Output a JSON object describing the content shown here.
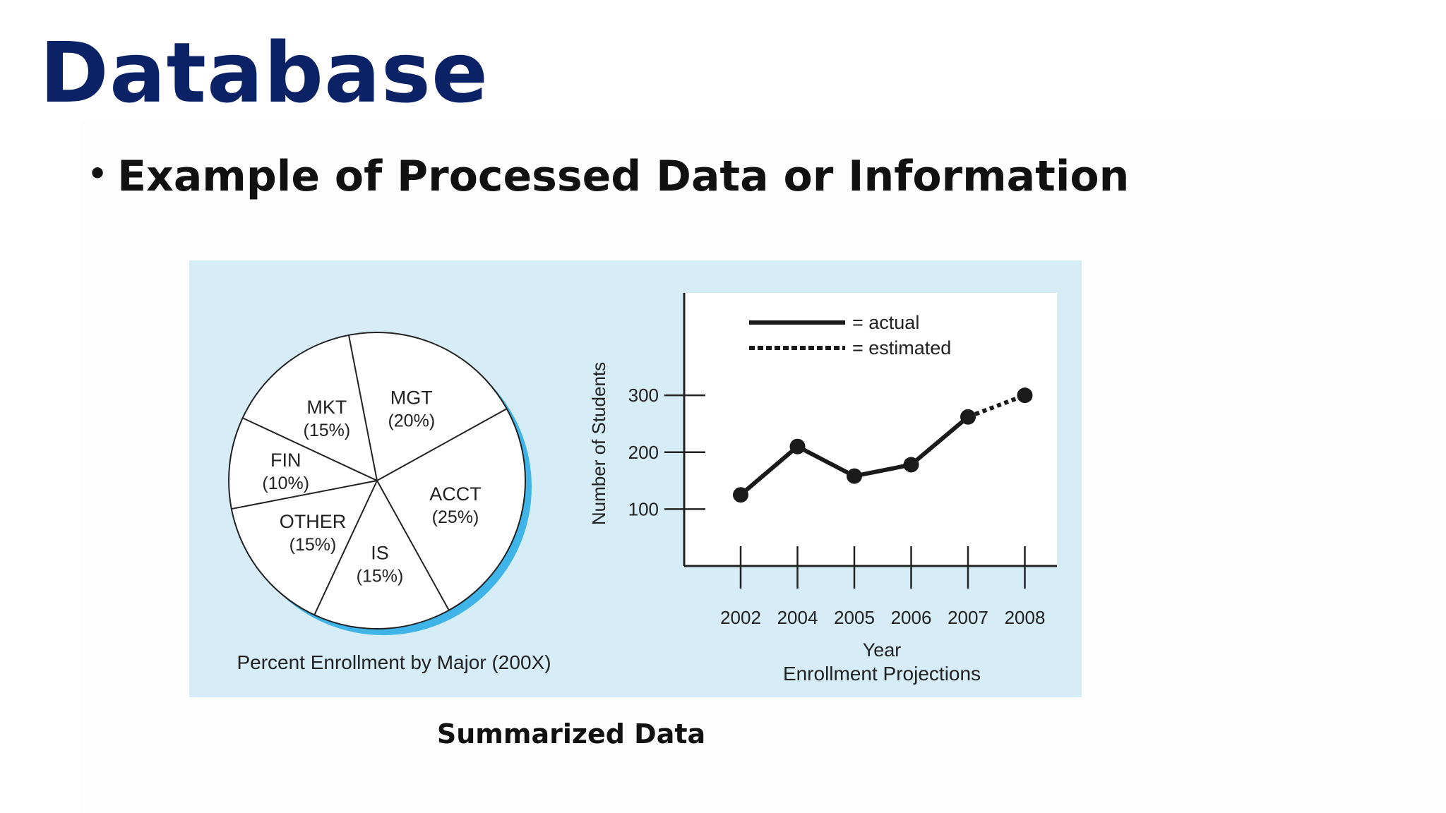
{
  "slide": {
    "title": "Database",
    "bullet": "Example of Processed Data or Information",
    "caption": "Summarized Data"
  },
  "colors": {
    "title": "#0b2366",
    "figure_background": "#d6edf8",
    "pie_shadow": "#3fb4e8"
  },
  "chart_data": [
    {
      "type": "pie",
      "title": "Percent Enrollment by Major (200X)",
      "slices": [
        {
          "label": "MKT",
          "percent_label": "(15%)",
          "value": 15
        },
        {
          "label": "MGT",
          "percent_label": "(20%)",
          "value": 20
        },
        {
          "label": "ACCT",
          "percent_label": "(25%)",
          "value": 25
        },
        {
          "label": "IS",
          "percent_label": "(15%)",
          "value": 15
        },
        {
          "label": "OTHER",
          "percent_label": "(15%)",
          "value": 15
        },
        {
          "label": "FIN",
          "percent_label": "(10%)",
          "value": 10
        }
      ]
    },
    {
      "type": "line",
      "title": "Enrollment Projections",
      "xlabel": "Year",
      "ylabel": "Number of Students",
      "categories": [
        "2002",
        "2004",
        "2005",
        "2006",
        "2007",
        "2008"
      ],
      "yticks": [
        100,
        200,
        300
      ],
      "ylim": [
        0,
        480
      ],
      "series": [
        {
          "name": "= actual",
          "style": "solid",
          "values": [
            125,
            210,
            158,
            178,
            262,
            null
          ]
        },
        {
          "name": "= estimated",
          "style": "dashed",
          "values": [
            null,
            null,
            null,
            null,
            262,
            300
          ]
        }
      ],
      "legend": "top"
    }
  ]
}
